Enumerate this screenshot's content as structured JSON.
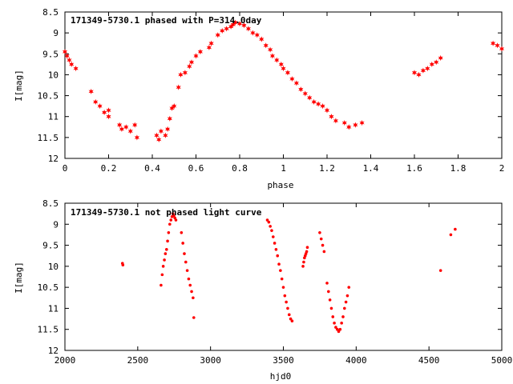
{
  "chart_data": [
    {
      "type": "scatter",
      "title": "171349-5730.1 phased with P=314.0day",
      "xlabel": "phase",
      "ylabel": "I[mag]",
      "xlim": [
        0,
        2
      ],
      "ylim": [
        8.5,
        12
      ],
      "y_inverted": true,
      "grid": false,
      "xticks": [
        0,
        0.2,
        0.4,
        0.6,
        0.8,
        1,
        1.2,
        1.4,
        1.6,
        1.8,
        2
      ],
      "xtick_labels": [
        "0",
        "0.2",
        "0.4",
        "0.6",
        "0.8",
        "1",
        "1.2",
        "1.4",
        "1.6",
        "1.8",
        "2"
      ],
      "yticks": [
        8.5,
        9,
        9.5,
        10,
        10.5,
        11,
        11.5,
        12
      ],
      "ytick_labels": [
        "8.5",
        "9",
        "9.5",
        "10",
        "10.5",
        "11",
        "11.5",
        "12"
      ],
      "marker_color": "#ff0000",
      "marker": "star",
      "series": [
        {
          "x": [
            0.0,
            0.01,
            0.02,
            0.03,
            0.05,
            0.12,
            0.14,
            0.16,
            0.18,
            0.2,
            0.2,
            0.25,
            0.26,
            0.28,
            0.3,
            0.32,
            0.33,
            0.42,
            0.43,
            0.44,
            0.46,
            0.47,
            0.48,
            0.49,
            0.5,
            0.52,
            0.53,
            0.55,
            0.57,
            0.58,
            0.6,
            0.62,
            0.66,
            0.67,
            0.7,
            0.72,
            0.74,
            0.76,
            0.77,
            0.78,
            0.8,
            0.82,
            0.84,
            0.86,
            0.88,
            0.9,
            0.92,
            0.94,
            0.95,
            0.97,
            0.99,
            1.0,
            1.02,
            1.04,
            1.06,
            1.08,
            1.1,
            1.12,
            1.14,
            1.16,
            1.18,
            1.2,
            1.22,
            1.24,
            1.28,
            1.3,
            1.33,
            1.36,
            1.6,
            1.62,
            1.64,
            1.66,
            1.68,
            1.7,
            1.72,
            1.96,
            1.98,
            2.0
          ],
          "y": [
            9.45,
            9.55,
            9.65,
            9.75,
            9.85,
            10.4,
            10.65,
            10.75,
            10.9,
            11.0,
            10.85,
            11.2,
            11.3,
            11.25,
            11.35,
            11.2,
            11.5,
            11.45,
            11.55,
            11.35,
            11.45,
            11.3,
            11.05,
            10.8,
            10.75,
            10.3,
            10.0,
            9.95,
            9.8,
            9.7,
            9.55,
            9.45,
            9.35,
            9.25,
            9.05,
            8.95,
            8.9,
            8.85,
            8.8,
            8.75,
            8.78,
            8.82,
            8.9,
            9.0,
            9.05,
            9.15,
            9.3,
            9.4,
            9.55,
            9.65,
            9.75,
            9.85,
            9.95,
            10.1,
            10.2,
            10.35,
            10.45,
            10.55,
            10.65,
            10.7,
            10.75,
            10.85,
            11.0,
            11.1,
            11.15,
            11.25,
            11.2,
            11.15,
            9.95,
            10.0,
            9.9,
            9.85,
            9.75,
            9.7,
            9.6,
            9.25,
            9.3,
            9.38
          ]
        }
      ]
    },
    {
      "type": "scatter",
      "title": "171349-5730.1 not phased light curve",
      "xlabel": "hjd0",
      "ylabel": "I[mag]",
      "xlim": [
        2000,
        5000
      ],
      "ylim": [
        8.5,
        12
      ],
      "y_inverted": true,
      "grid": false,
      "xticks": [
        2000,
        2500,
        3000,
        3500,
        4000,
        4500,
        5000
      ],
      "xtick_labels": [
        "2000",
        "2500",
        "3000",
        "3500",
        "4000",
        "4500",
        "5000"
      ],
      "yticks": [
        8.5,
        9,
        9.5,
        10,
        10.5,
        11,
        11.5,
        12
      ],
      "ytick_labels": [
        "8.5",
        "9",
        "9.5",
        "10",
        "10.5",
        "11",
        "11.5",
        "12"
      ],
      "marker_color": "#ff0000",
      "marker": "dot",
      "series": [
        {
          "x": [
            2395,
            2398,
            2660,
            2668,
            2675,
            2683,
            2690,
            2698,
            2705,
            2712,
            2720,
            2728,
            2735,
            2742,
            2748,
            2755,
            2762,
            2800,
            2810,
            2820,
            2830,
            2840,
            2850,
            2860,
            2870,
            2880,
            2885,
            3390,
            3400,
            3410,
            3420,
            3430,
            3440,
            3450,
            3460,
            3470,
            3480,
            3490,
            3500,
            3510,
            3520,
            3530,
            3540,
            3550,
            3560,
            3635,
            3640,
            3645,
            3650,
            3655,
            3660,
            3665,
            3750,
            3760,
            3770,
            3780,
            3800,
            3810,
            3820,
            3830,
            3840,
            3850,
            3860,
            3870,
            3880,
            3890,
            3900,
            3910,
            3920,
            3930,
            3940,
            3950,
            4580,
            4650,
            4680
          ],
          "y": [
            9.93,
            9.97,
            10.45,
            10.2,
            10.0,
            9.85,
            9.7,
            9.6,
            9.4,
            9.2,
            9.0,
            8.9,
            8.82,
            8.75,
            8.8,
            8.85,
            8.9,
            9.2,
            9.45,
            9.7,
            9.9,
            10.1,
            10.3,
            10.45,
            10.6,
            10.75,
            11.22,
            8.9,
            8.95,
            9.05,
            9.15,
            9.3,
            9.45,
            9.6,
            9.75,
            9.95,
            10.1,
            10.3,
            10.5,
            10.7,
            10.85,
            11.0,
            11.15,
            11.25,
            11.3,
            10.0,
            9.9,
            9.8,
            9.75,
            9.7,
            9.65,
            9.55,
            9.2,
            9.35,
            9.5,
            9.65,
            10.4,
            10.6,
            10.8,
            11.0,
            11.2,
            11.35,
            11.45,
            11.5,
            11.55,
            11.5,
            11.35,
            11.2,
            11.0,
            10.85,
            10.7,
            10.5,
            10.1,
            9.25,
            9.12
          ]
        }
      ]
    }
  ]
}
